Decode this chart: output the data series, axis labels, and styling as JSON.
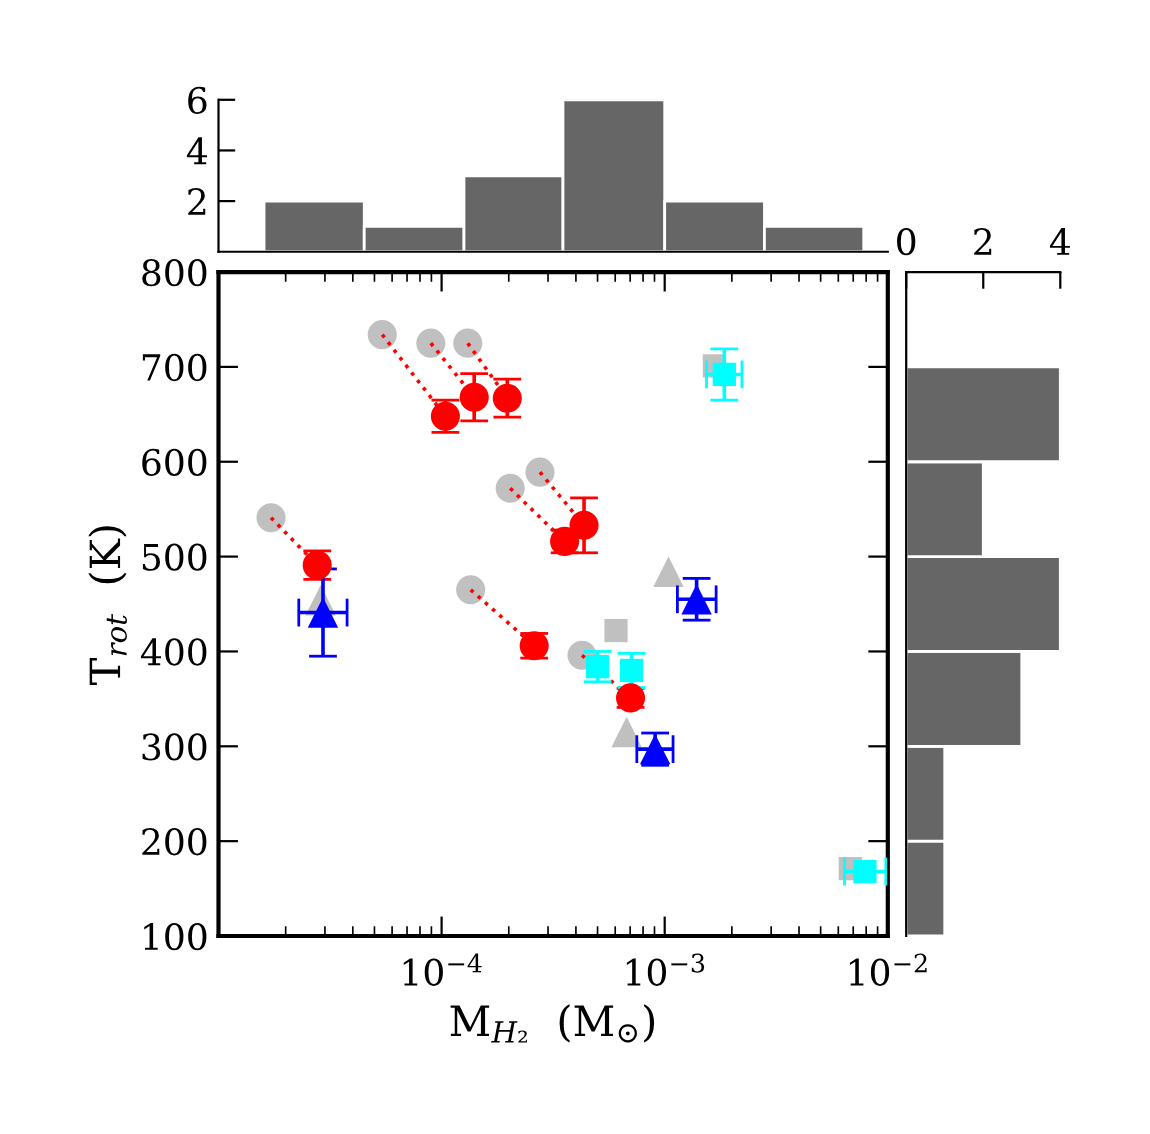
{
  "chart_data": [
    {
      "type": "histogram",
      "bins": [
        1.6e-05,
        4.5e-05,
        0.000126,
        0.00035,
        0.001,
        0.0028,
        0.0078
      ],
      "values": [
        2,
        1,
        3,
        6,
        2,
        1
      ],
      "color": "#666666",
      "log": "x",
      "xlim": [
        1e-05,
        0.01
      ],
      "ylim": [
        0,
        6
      ],
      "yticks": [
        2,
        4,
        6
      ],
      "tick_labels": "y",
      "grid": false,
      "legend": false
    },
    {
      "type": "scatter",
      "xlabel": "M$_{H₂}$  (M$_{⊙}$)",
      "ylabel": "T$_{rot}$  (K)",
      "log": "x",
      "xlim": [
        1e-05,
        0.01
      ],
      "ylim": [
        100,
        800
      ],
      "xticks": [
        {
          "value": 0.0001,
          "label": "10$^{−4}$"
        },
        {
          "value": 0.001,
          "label": "10$^{−3}$"
        },
        {
          "value": 0.01,
          "label": "10$^{−2}$"
        }
      ],
      "yticks": [
        100,
        200,
        300,
        400,
        500,
        600,
        700,
        800
      ],
      "grid": false,
      "legend": false,
      "series": [
        {
          "type": "line",
          "color": "#ff0000",
          "line_style": "dotted",
          "marker": "none",
          "x": [
            5.42e-05,
            0.000104,
            null,
            8.95e-05,
            0.00014,
            null,
            0.000131,
            0.000197,
            null,
            0.000203,
            0.000356,
            null,
            0.000276,
            0.000435,
            null,
            1.72e-05,
            2.77e-05,
            null,
            0.000135,
            0.00026,
            null,
            0.000426,
            0.000703
          ],
          "values": [
            734,
            648,
            null,
            725,
            668,
            null,
            725,
            667,
            null,
            572,
            516,
            null,
            589,
            533,
            null,
            541,
            491,
            null,
            465,
            406,
            null,
            396,
            351
          ]
        },
        {
          "color": "#c0c0c0",
          "marker": "circle",
          "x": [
            5.42e-05,
            8.95e-05,
            0.000131,
            0.000203,
            0.000276,
            1.72e-05,
            0.000135,
            0.000426
          ],
          "values": [
            734,
            725,
            725,
            572,
            589,
            541,
            465,
            396
          ]
        },
        {
          "color": "#c0c0c0",
          "marker": "triangle",
          "x": [
            2.87e-05,
            0.00104,
            0.000675
          ],
          "values": [
            454,
            484,
            315
          ]
        },
        {
          "color": "#c0c0c0",
          "marker": "square",
          "x": [
            0.000605,
            0.00167,
            0.00679
          ],
          "values": [
            422,
            701,
            171
          ]
        },
        {
          "color": "#ff0000",
          "marker": "circle",
          "x": [
            0.000104,
            0.00014,
            0.000197,
            0.000356,
            0.000435,
            2.77e-05,
            0.00026,
            0.000703
          ],
          "values": [
            648,
            668,
            667,
            516,
            533,
            491,
            406,
            351
          ],
          "errors": [
            17,
            25,
            20,
            12,
            29,
            15,
            13,
            10
          ]
        },
        {
          "color": "#0000ff",
          "marker": "triangle",
          "x": [
            2.94e-05,
            0.00139,
            0.000906
          ],
          "values": [
            441,
            455,
            297
          ],
          "errors": [
            46,
            22,
            17
          ],
          "xerrors": [
            [
              2.29e-05,
              3.77e-05
            ],
            [
              0.00114,
              0.0017
            ],
            [
              0.00075,
              0.00109
            ]
          ]
        },
        {
          "color": "#00ffff",
          "marker": "square",
          "x": [
            0.0005,
            0.00071,
            0.00185,
            0.0079
          ],
          "values": [
            384,
            380,
            692,
            168
          ],
          "errors": [
            16,
            18,
            27,
            null
          ],
          "xerrors": [
            null,
            null,
            [
              0.00154,
              0.00222
            ],
            [
              0.0064,
              0.0098
            ]
          ]
        }
      ]
    },
    {
      "type": "histogram",
      "orientation": "horizontal",
      "bins": [
        100,
        200,
        300,
        400,
        500,
        600,
        700
      ],
      "values": [
        1,
        1,
        3,
        4,
        2,
        4
      ],
      "color": "#666666",
      "xlim": [
        0,
        4
      ],
      "xticks": [
        0,
        2,
        4
      ],
      "ylim": [
        100,
        800
      ],
      "tick_labels": "x",
      "grid": false,
      "legend": false
    }
  ]
}
